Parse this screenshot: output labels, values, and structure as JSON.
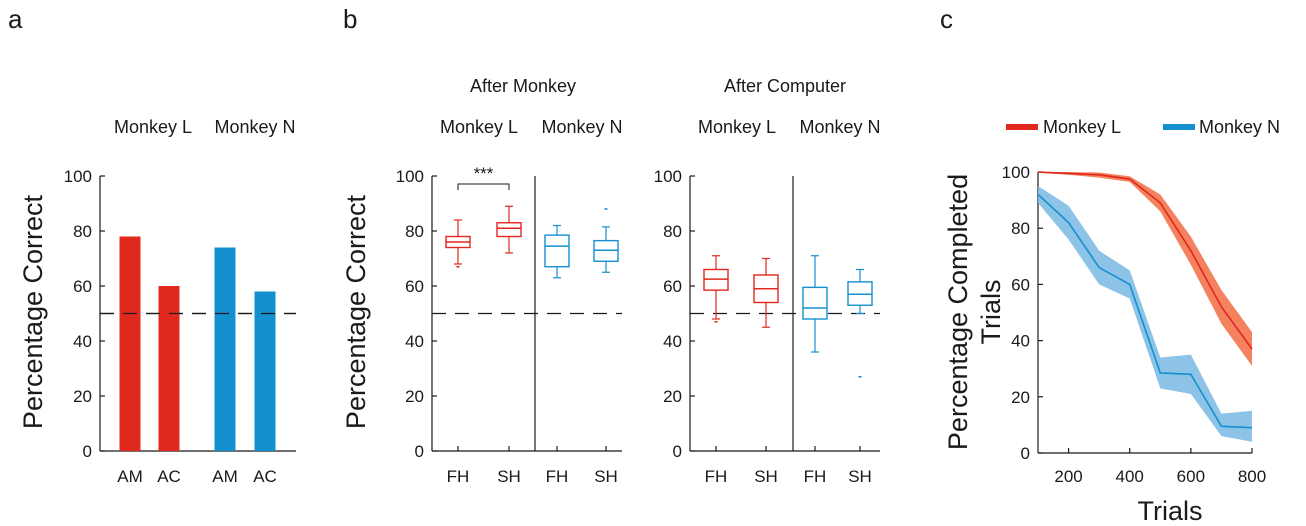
{
  "colors": {
    "monkey_l": "#e0281e",
    "monkey_n": "#1590cf",
    "band_l": "#f47b55",
    "band_n": "#7fbde4"
  },
  "panel_a": {
    "letter": "a",
    "ylabel": "Percentage Correct",
    "headers": [
      "Monkey L",
      "Monkey N"
    ]
  },
  "panel_b": {
    "letter": "b",
    "ylabel": "Percentage Correct",
    "group_titles": [
      "After Monkey",
      "After Computer"
    ],
    "monkey_headers": [
      "Monkey L",
      "Monkey N",
      "Monkey L",
      "Monkey N"
    ],
    "significance": "***"
  },
  "panel_c": {
    "letter": "c",
    "ylabel_line1": "Percentage Completed",
    "ylabel_line2": "Trials",
    "xlabel": "Trials",
    "legend": [
      "Monkey L",
      "Monkey N"
    ]
  },
  "chart_data": [
    {
      "type": "bar",
      "categories": [
        "AM",
        "AC",
        "AM",
        "AC"
      ],
      "groups": [
        "Monkey L",
        "Monkey L",
        "Monkey N",
        "Monkey N"
      ],
      "values": [
        78,
        60,
        74,
        58
      ],
      "ylim": [
        0,
        100
      ],
      "yticks": [
        0,
        20,
        40,
        60,
        80,
        100
      ],
      "chance_line": 50,
      "ylabel": "Percentage Correct"
    },
    {
      "type": "box",
      "title": "After Monkey",
      "categories": [
        "FH",
        "SH",
        "FH",
        "SH"
      ],
      "groups": [
        "Monkey L",
        "Monkey L",
        "Monkey N",
        "Monkey N"
      ],
      "boxes": [
        {
          "min": 68,
          "q1": 74,
          "median": 76,
          "q3": 78,
          "max": 84,
          "outliers": [
            67
          ]
        },
        {
          "min": 72,
          "q1": 78,
          "median": 81,
          "q3": 83,
          "max": 89,
          "outliers": []
        },
        {
          "min": 63,
          "q1": 67,
          "median": 74.5,
          "q3": 78.5,
          "max": 82,
          "outliers": []
        },
        {
          "min": 65,
          "q1": 69,
          "median": 73,
          "q3": 76.5,
          "max": 81.5,
          "outliers": [
            88
          ]
        }
      ],
      "ylim": [
        0,
        100
      ],
      "yticks": [
        0,
        20,
        40,
        60,
        80,
        100
      ],
      "chance_line": 50,
      "significance": {
        "between": [
          0,
          1
        ],
        "label": "***"
      },
      "ylabel": "Percentage Correct"
    },
    {
      "type": "box",
      "title": "After Computer",
      "categories": [
        "FH",
        "SH",
        "FH",
        "SH"
      ],
      "groups": [
        "Monkey L",
        "Monkey L",
        "Monkey N",
        "Monkey N"
      ],
      "boxes": [
        {
          "min": 48,
          "q1": 58.5,
          "median": 62.5,
          "q3": 66,
          "max": 71,
          "outliers": [
            47
          ]
        },
        {
          "min": 45,
          "q1": 54,
          "median": 59,
          "q3": 64,
          "max": 70,
          "outliers": []
        },
        {
          "min": 36,
          "q1": 48,
          "median": 52,
          "q3": 59.5,
          "max": 71,
          "outliers": []
        },
        {
          "min": 50,
          "q1": 53,
          "median": 57,
          "q3": 61.5,
          "max": 66,
          "outliers": [
            27
          ]
        }
      ],
      "ylim": [
        0,
        100
      ],
      "yticks": [
        0,
        20,
        40,
        60,
        80,
        100
      ],
      "chance_line": 50
    },
    {
      "type": "area",
      "x": [
        100,
        200,
        300,
        400,
        500,
        600,
        700,
        800
      ],
      "xlim": [
        100,
        800
      ],
      "xticks": [
        200,
        400,
        600,
        800
      ],
      "ylim": [
        0,
        100
      ],
      "yticks": [
        0,
        20,
        40,
        60,
        80,
        100
      ],
      "xlabel": "Trials",
      "ylabel": "Percentage Completed Trials",
      "series": [
        {
          "name": "Monkey L",
          "mean": [
            100,
            99.5,
            99,
            97.5,
            89,
            72,
            52,
            37
          ],
          "lower": [
            99.7,
            99,
            98,
            96.5,
            86,
            67,
            46,
            31
          ],
          "upper": [
            100,
            100,
            99.8,
            98.5,
            92,
            77,
            58,
            43
          ]
        },
        {
          "name": "Monkey N",
          "mean": [
            92,
            82,
            66,
            60,
            28.5,
            28,
            9.5,
            9
          ],
          "lower": [
            89,
            76,
            60,
            55,
            23,
            21,
            6,
            4
          ],
          "upper": [
            95,
            88,
            72,
            65,
            34,
            35,
            14,
            15
          ]
        }
      ]
    }
  ]
}
